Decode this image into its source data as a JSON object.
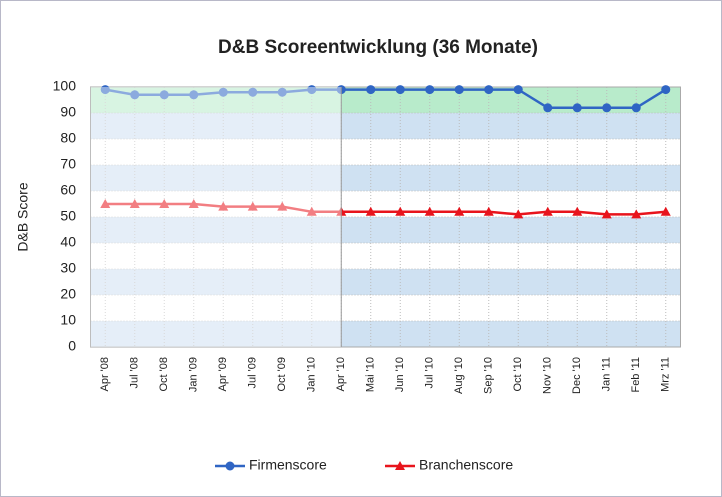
{
  "chart_data": {
    "type": "line",
    "title": "D&B Scoreentwicklung (36 Monate)",
    "y_label": "D&B Score",
    "categories": [
      "Apr '08",
      "Jul '08",
      "Oct '08",
      "Jan '09",
      "Apr '09",
      "Jul '09",
      "Oct '09",
      "Jan '10",
      "Apr '10",
      "Mai '10",
      "Jun '10",
      "Jul '10",
      "Aug '10",
      "Sep '10",
      "Oct '10",
      "Nov '10",
      "Dec '10",
      "Jan '11",
      "Feb '11",
      "Mrz '11"
    ],
    "series": [
      {
        "name": "Firmenscore",
        "color": "#2f65c4",
        "marker": "circle",
        "values": [
          99,
          97,
          97,
          97,
          98,
          98,
          98,
          99,
          99,
          99,
          99,
          99,
          99,
          99,
          99,
          92,
          92,
          92,
          92,
          99
        ]
      },
      {
        "name": "Branchenscore",
        "color": "#e8141c",
        "marker": "triangle",
        "values": [
          55,
          55,
          55,
          55,
          54,
          54,
          54,
          52,
          52,
          52,
          52,
          52,
          52,
          52,
          51,
          52,
          52,
          51,
          51,
          52
        ]
      }
    ],
    "ylim": [
      0,
      100
    ],
    "yticks": [
      0,
      10,
      20,
      30,
      40,
      50,
      60,
      70,
      80,
      90,
      100
    ],
    "grid": true,
    "legend": "bottom"
  }
}
